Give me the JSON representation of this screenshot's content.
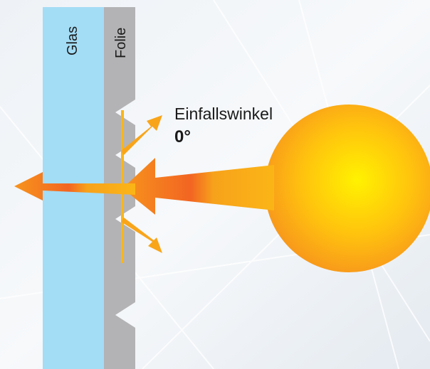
{
  "labels": {
    "glass": "Glas",
    "film": "Folie",
    "angle_title": "Einfallswinkel",
    "angle_value": "0°"
  }
}
